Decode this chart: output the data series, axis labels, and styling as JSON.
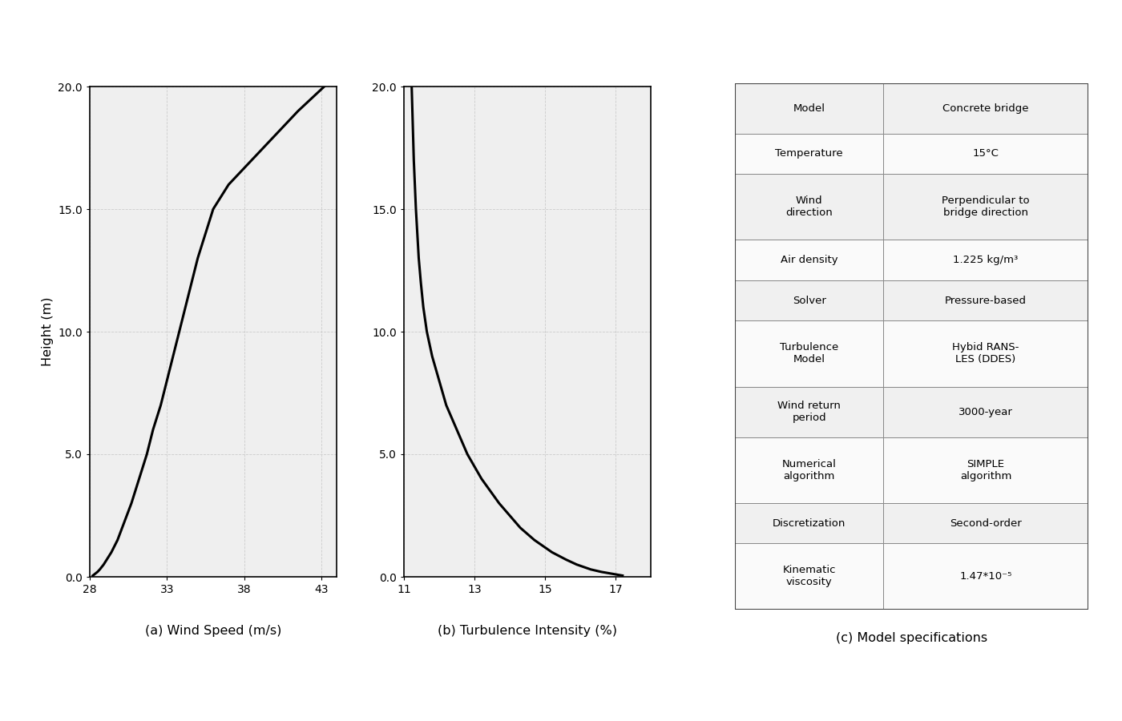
{
  "wind_speed_heights": [
    0.05,
    0.1,
    0.2,
    0.3,
    0.5,
    0.7,
    1.0,
    1.5,
    2.0,
    3.0,
    4.0,
    5.0,
    6.0,
    7.0,
    8.0,
    9.0,
    10.0,
    11.0,
    12.0,
    13.0,
    14.0,
    15.0,
    16.0,
    17.0,
    18.0,
    19.0,
    20.0
  ],
  "wind_speeds": [
    28.2,
    28.3,
    28.5,
    28.65,
    28.9,
    29.1,
    29.4,
    29.8,
    30.1,
    30.7,
    31.2,
    31.7,
    32.1,
    32.6,
    33.0,
    33.4,
    33.8,
    34.2,
    34.6,
    35.0,
    35.5,
    36.0,
    37.0,
    38.5,
    40.0,
    41.5,
    43.2
  ],
  "turb_heights": [
    0.05,
    0.1,
    0.2,
    0.3,
    0.5,
    0.7,
    1.0,
    1.5,
    2.0,
    3.0,
    4.0,
    5.0,
    6.0,
    7.0,
    8.0,
    9.0,
    10.0,
    11.0,
    12.0,
    13.0,
    14.0,
    15.0,
    16.0,
    17.0,
    18.0,
    19.0,
    20.0
  ],
  "turb_intensities": [
    17.2,
    17.0,
    16.6,
    16.3,
    15.9,
    15.6,
    15.2,
    14.7,
    14.3,
    13.7,
    13.2,
    12.8,
    12.5,
    12.2,
    12.0,
    11.8,
    11.65,
    11.55,
    11.48,
    11.42,
    11.38,
    11.34,
    11.31,
    11.28,
    11.26,
    11.24,
    11.22
  ],
  "wind_xlim": [
    28,
    44
  ],
  "wind_xticks": [
    28,
    33,
    38,
    43
  ],
  "turb_xlim": [
    11,
    18
  ],
  "turb_xticks": [
    11,
    13,
    15,
    17
  ],
  "ylim": [
    0,
    20
  ],
  "yticks": [
    0.0,
    5.0,
    10.0,
    15.0,
    20.0
  ],
  "ytick_labels": [
    "0.0",
    "5.0",
    "10.0",
    "15.0",
    "20.0"
  ],
  "ylabel": "Height (m)",
  "xlabel_a": "(a) Wind Speed (m/s)",
  "xlabel_b": "(b) Turbulence Intensity (%)",
  "xlabel_c": "(c) Model specifications",
  "table_data": [
    [
      "Model",
      "Concrete bridge"
    ],
    [
      "Temperature",
      "15°C"
    ],
    [
      "Wind\ndirection",
      "Perpendicular to\nbridge direction"
    ],
    [
      "Air density",
      "1.225 kg/m³"
    ],
    [
      "Solver",
      "Pressure-based"
    ],
    [
      "Turbulence\nModel",
      "Hybid RANS-\nLES (DDES)"
    ],
    [
      "Wind return\nperiod",
      "3000-year"
    ],
    [
      "Numerical\nalgorithm",
      "SIMPLE\nalgorithm"
    ],
    [
      "Discretization",
      "Second-order"
    ],
    [
      "Kinematic\nviscosity",
      "1.47*10⁻⁵"
    ]
  ],
  "bg_color": "#ffffff",
  "plot_bg_color": "#efefef",
  "grid_color": "#cccccc",
  "line_color": "#000000",
  "table_bg_odd": "#f0f0f0",
  "table_bg_even": "#fafafa",
  "table_border_color": "#888888",
  "table_outer_color": "#444444"
}
